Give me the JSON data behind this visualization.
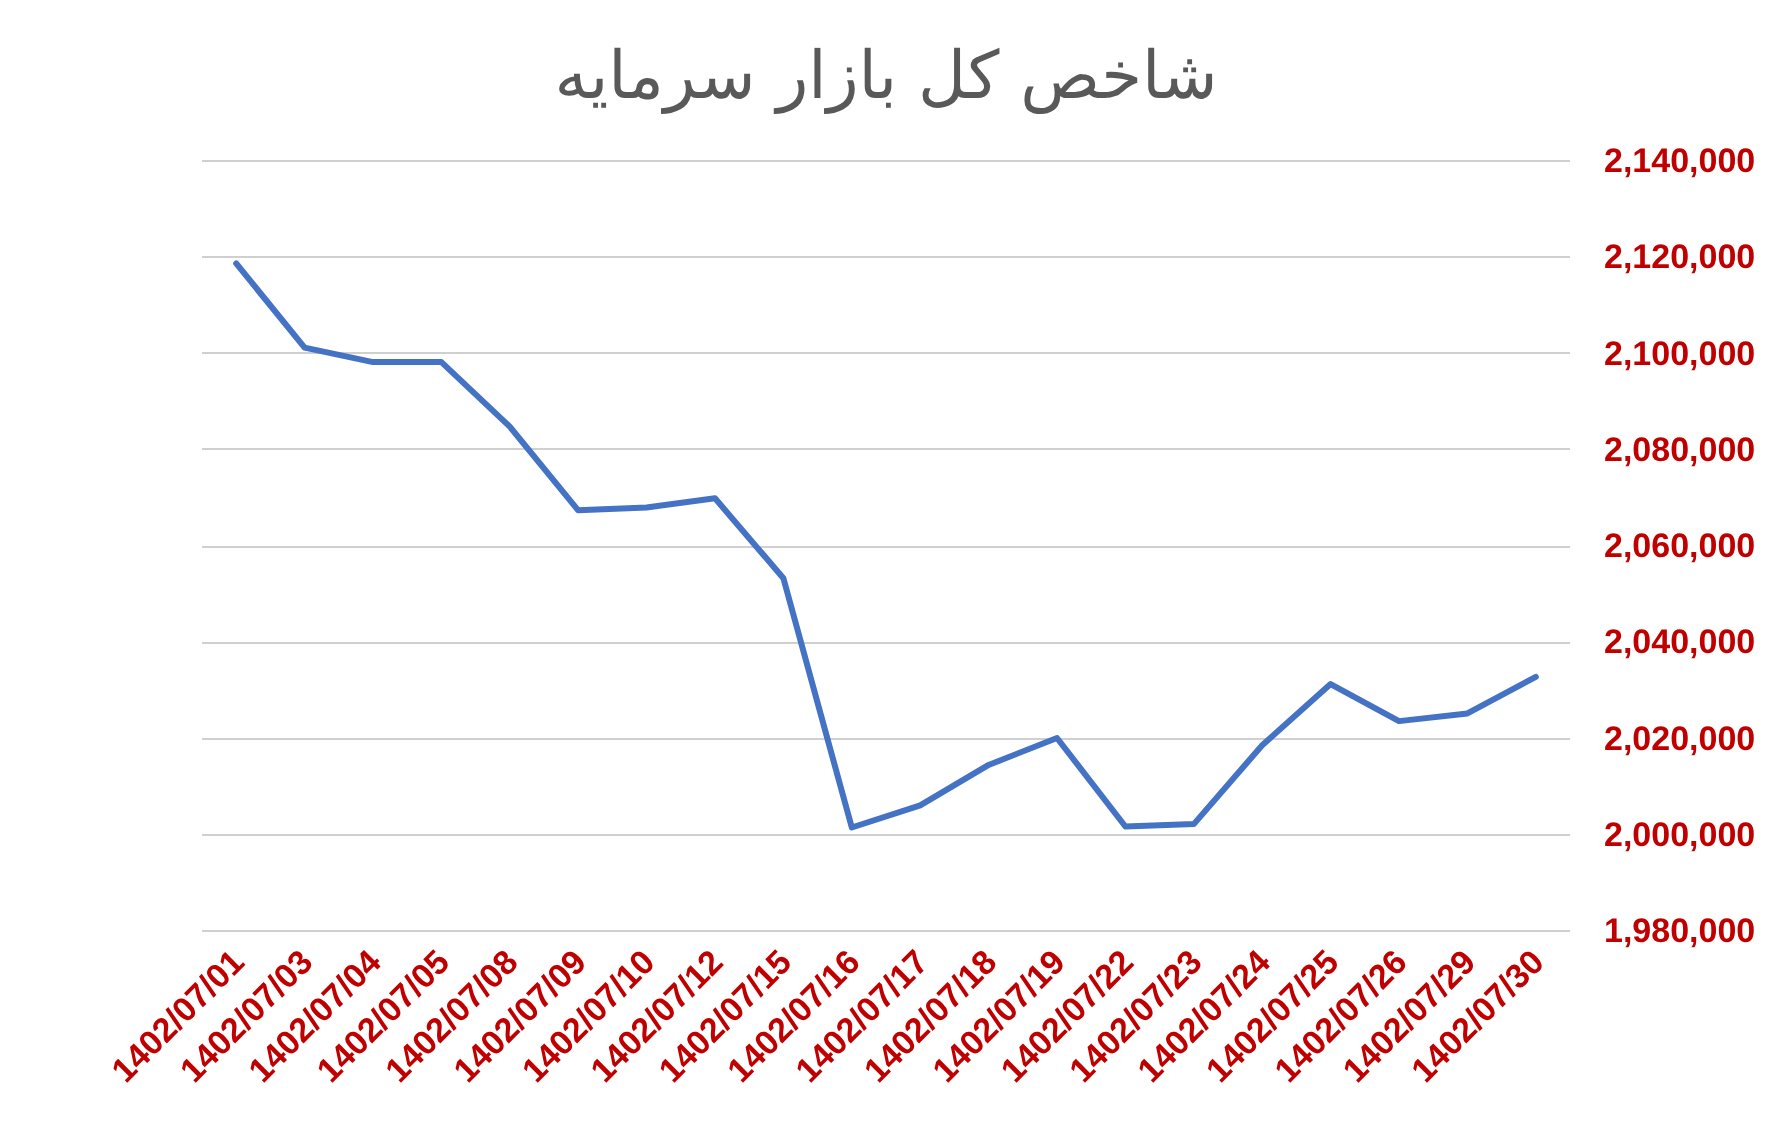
{
  "chart_data": {
    "type": "line",
    "title": "شاخص کل بازار سرمایه",
    "categories": [
      "1402/07/01",
      "1402/07/03",
      "1402/07/04",
      "1402/07/05",
      "1402/07/08",
      "1402/07/09",
      "1402/07/10",
      "1402/07/12",
      "1402/07/15",
      "1402/07/16",
      "1402/07/17",
      "1402/07/18",
      "1402/07/19",
      "1402/07/22",
      "1402/07/23",
      "1402/07/24",
      "1402/07/25",
      "1402/07/26",
      "1402/07/29",
      "1402/07/30"
    ],
    "series": [
      {
        "color": "#4472c4",
        "values": [
          2118500,
          2101000,
          2098000,
          2098000,
          2084600,
          2067200,
          2067800,
          2069700,
          2053100,
          2001300,
          2005900,
          2014300,
          2019900,
          2001500,
          2002000,
          2018400,
          2031100,
          2023400,
          2025000,
          2032600
        ]
      }
    ],
    "ylim": [
      1980000,
      2140000
    ],
    "yticks": [
      {
        "value": 1980000,
        "label": "1,980,000"
      },
      {
        "value": 2000000,
        "label": "2,000,000"
      },
      {
        "value": 2020000,
        "label": "2,020,000"
      },
      {
        "value": 2040000,
        "label": "2,040,000"
      },
      {
        "value": 2060000,
        "label": "2,060,000"
      },
      {
        "value": 2080000,
        "label": "2,080,000"
      },
      {
        "value": 2100000,
        "label": "2,100,000"
      },
      {
        "value": 2120000,
        "label": "2,120,000"
      },
      {
        "value": 2140000,
        "label": "2,140,000"
      }
    ],
    "grid": "y",
    "line_style": "solid"
  }
}
